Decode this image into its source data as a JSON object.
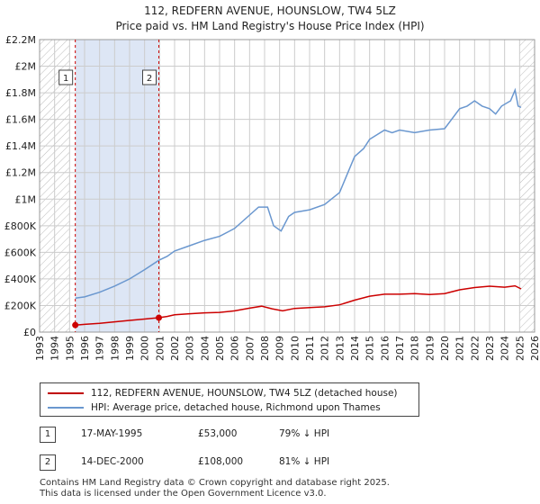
{
  "title_line1": "112, REDFERN AVENUE, HOUNSLOW, TW4 5LZ",
  "title_line2": "Price paid vs. HM Land Registry's House Price Index (HPI)",
  "colors": {
    "price_paid": "#cc0000",
    "hpi": "#6a97cf",
    "shade": "#dde6f5",
    "hatch": "#bbbbbb",
    "grid": "#cccccc"
  },
  "chart_data": {
    "type": "line",
    "xlim": [
      1993,
      2026
    ],
    "ylim": [
      0,
      2200000
    ],
    "x_ticks": [
      1993,
      1994,
      1995,
      1996,
      1997,
      1998,
      1999,
      2000,
      2001,
      2002,
      2003,
      2004,
      2005,
      2006,
      2007,
      2008,
      2009,
      2010,
      2011,
      2012,
      2013,
      2014,
      2015,
      2016,
      2017,
      2018,
      2019,
      2020,
      2021,
      2022,
      2023,
      2024,
      2025,
      2026
    ],
    "y_ticks": [
      {
        "value": 0,
        "label": "£0"
      },
      {
        "value": 200000,
        "label": "£200K"
      },
      {
        "value": 400000,
        "label": "£400K"
      },
      {
        "value": 600000,
        "label": "£600K"
      },
      {
        "value": 800000,
        "label": "£800K"
      },
      {
        "value": 1000000,
        "label": "£1M"
      },
      {
        "value": 1200000,
        "label": "£1.2M"
      },
      {
        "value": 1400000,
        "label": "£1.4M"
      },
      {
        "value": 1600000,
        "label": "£1.6M"
      },
      {
        "value": 1800000,
        "label": "£1.8M"
      },
      {
        "value": 2000000,
        "label": "£2M"
      },
      {
        "value": 2200000,
        "label": "£2.2M"
      }
    ],
    "hatch_before": 1995.0,
    "hatch_after": 2025.0,
    "shaded_range": [
      1995.38,
      2000.95
    ],
    "series": [
      {
        "name": "112, REDFERN AVENUE, HOUNSLOW, TW4 5LZ (detached house)",
        "points": [
          [
            1995.38,
            53000
          ],
          [
            1996,
            58000
          ],
          [
            1997,
            66000
          ],
          [
            1998,
            77000
          ],
          [
            1999,
            88000
          ],
          [
            2000,
            98000
          ],
          [
            2000.95,
            108000
          ],
          [
            2001.5,
            118000
          ],
          [
            2002,
            130000
          ],
          [
            2003,
            138000
          ],
          [
            2004,
            145000
          ],
          [
            2005,
            148000
          ],
          [
            2006,
            160000
          ],
          [
            2007,
            180000
          ],
          [
            2007.8,
            195000
          ],
          [
            2008.5,
            175000
          ],
          [
            2009.2,
            160000
          ],
          [
            2010,
            178000
          ],
          [
            2011,
            185000
          ],
          [
            2012,
            190000
          ],
          [
            2013,
            205000
          ],
          [
            2014,
            240000
          ],
          [
            2015,
            270000
          ],
          [
            2016,
            285000
          ],
          [
            2017,
            285000
          ],
          [
            2018,
            290000
          ],
          [
            2019,
            282000
          ],
          [
            2020,
            290000
          ],
          [
            2021,
            318000
          ],
          [
            2022,
            335000
          ],
          [
            2023,
            345000
          ],
          [
            2024,
            338000
          ],
          [
            2024.7,
            348000
          ],
          [
            2025.1,
            325000
          ]
        ]
      },
      {
        "name": "HPI: Average price, detached house, Richmond upon Thames",
        "points": [
          [
            1995.38,
            255000
          ],
          [
            1996,
            265000
          ],
          [
            1997,
            300000
          ],
          [
            1998,
            345000
          ],
          [
            1999,
            400000
          ],
          [
            2000,
            470000
          ],
          [
            2000.95,
            540000
          ],
          [
            2001.5,
            570000
          ],
          [
            2002,
            610000
          ],
          [
            2003,
            650000
          ],
          [
            2004,
            690000
          ],
          [
            2005,
            720000
          ],
          [
            2006,
            780000
          ],
          [
            2007,
            880000
          ],
          [
            2007.6,
            940000
          ],
          [
            2008.2,
            940000
          ],
          [
            2008.6,
            800000
          ],
          [
            2009.1,
            760000
          ],
          [
            2009.6,
            870000
          ],
          [
            2010,
            900000
          ],
          [
            2011,
            920000
          ],
          [
            2012,
            960000
          ],
          [
            2013,
            1050000
          ],
          [
            2014,
            1320000
          ],
          [
            2014.6,
            1380000
          ],
          [
            2015,
            1450000
          ],
          [
            2016,
            1520000
          ],
          [
            2016.5,
            1500000
          ],
          [
            2017,
            1520000
          ],
          [
            2018,
            1500000
          ],
          [
            2019,
            1520000
          ],
          [
            2020,
            1530000
          ],
          [
            2021,
            1680000
          ],
          [
            2021.5,
            1700000
          ],
          [
            2022,
            1740000
          ],
          [
            2022.5,
            1700000
          ],
          [
            2023,
            1680000
          ],
          [
            2023.4,
            1640000
          ],
          [
            2023.8,
            1700000
          ],
          [
            2024.4,
            1740000
          ],
          [
            2024.7,
            1820000
          ],
          [
            2024.9,
            1700000
          ],
          [
            2025.1,
            1690000
          ]
        ]
      }
    ],
    "markers": [
      {
        "label": "1",
        "x": 1995.38,
        "price": 53000
      },
      {
        "label": "2",
        "x": 2000.95,
        "price": 108000
      }
    ]
  },
  "legend": {
    "item1": "112, REDFERN AVENUE, HOUNSLOW, TW4 5LZ (detached house)",
    "item2": "HPI: Average price, detached house, Richmond upon Thames"
  },
  "transactions": [
    {
      "num": "1",
      "date": "17-MAY-1995",
      "price": "£53,000",
      "hpi_diff": "79% ↓ HPI"
    },
    {
      "num": "2",
      "date": "14-DEC-2000",
      "price": "£108,000",
      "hpi_diff": "81% ↓ HPI"
    }
  ],
  "footer": {
    "line1": "Contains HM Land Registry data © Crown copyright and database right 2025.",
    "line2": "This data is licensed under the Open Government Licence v3.0."
  }
}
